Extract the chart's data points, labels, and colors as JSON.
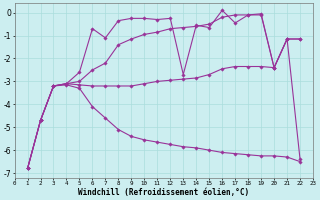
{
  "xlabel": "Windchill (Refroidissement éolien,°C)",
  "background_color": "#cceef0",
  "grid_color": "#aadddd",
  "line_color": "#993399",
  "xlim": [
    0,
    23
  ],
  "ylim": [
    -7.2,
    0.4
  ],
  "yticks": [
    0,
    -1,
    -2,
    -3,
    -4,
    -5,
    -6,
    -7
  ],
  "xticks": [
    0,
    1,
    2,
    3,
    4,
    5,
    6,
    7,
    8,
    9,
    10,
    11,
    12,
    13,
    14,
    15,
    16,
    17,
    18,
    19,
    20,
    21,
    22,
    23
  ],
  "series": [
    {
      "x": [
        1,
        2,
        3,
        4,
        5,
        6,
        7,
        8,
        9,
        10,
        11,
        12,
        13,
        14,
        15,
        16,
        17,
        18,
        19,
        20,
        21,
        22
      ],
      "y": [
        -6.8,
        -4.7,
        -3.2,
        -3.1,
        -2.6,
        -0.7,
        -1.1,
        -0.35,
        -0.25,
        -0.25,
        -0.3,
        -0.25,
        -2.7,
        -0.55,
        -0.65,
        0.1,
        -0.45,
        -0.1,
        -0.1,
        -2.4,
        -1.15,
        -1.15
      ]
    },
    {
      "x": [
        1,
        2,
        3,
        4,
        5,
        6,
        7,
        8,
        9,
        10,
        11,
        12,
        13,
        14,
        15,
        16,
        17,
        18,
        19,
        20,
        21,
        22
      ],
      "y": [
        -6.8,
        -4.7,
        -3.2,
        -3.1,
        -3.0,
        -2.5,
        -2.2,
        -1.4,
        -1.15,
        -0.95,
        -0.85,
        -0.7,
        -0.65,
        -0.6,
        -0.5,
        -0.2,
        -0.1,
        -0.1,
        -0.05,
        -2.4,
        -1.15,
        -1.15
      ]
    },
    {
      "x": [
        1,
        2,
        3,
        4,
        5,
        6,
        7,
        8,
        9,
        10,
        11,
        12,
        13,
        14,
        15,
        16,
        17,
        18,
        19,
        20,
        21,
        22
      ],
      "y": [
        -6.8,
        -4.7,
        -3.2,
        -3.1,
        -3.15,
        -3.2,
        -3.2,
        -3.2,
        -3.2,
        -3.1,
        -3.0,
        -2.95,
        -2.9,
        -2.85,
        -2.7,
        -2.45,
        -2.35,
        -2.35,
        -2.35,
        -2.4,
        -1.15,
        -6.4
      ]
    },
    {
      "x": [
        1,
        2,
        3,
        4,
        5,
        6,
        7,
        8,
        9,
        10,
        11,
        12,
        13,
        14,
        15,
        16,
        17,
        18,
        19,
        20,
        21,
        22
      ],
      "y": [
        -6.8,
        -4.7,
        -3.2,
        -3.15,
        -3.3,
        -4.1,
        -4.6,
        -5.1,
        -5.4,
        -5.55,
        -5.65,
        -5.75,
        -5.85,
        -5.9,
        -6.0,
        -6.1,
        -6.15,
        -6.2,
        -6.25,
        -6.25,
        -6.3,
        -6.5
      ]
    }
  ]
}
